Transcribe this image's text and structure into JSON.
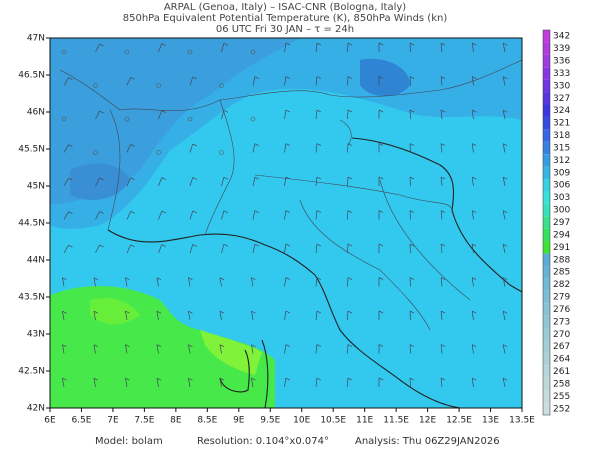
{
  "header": {
    "line1": "ARPAL (Genoa, Italy)  –  ISAC-CNR (Bologna, Italy)",
    "line2": "850hPa Equivalent Potential Temperature (K), 850hPa Winds (kn)",
    "line3": "06 UTC Fri 30 JAN  –  τ = 24h"
  },
  "map": {
    "lon_labels": [
      "6E",
      "6.5E",
      "7E",
      "7.5E",
      "8E",
      "8.5E",
      "9E",
      "9.5E",
      "10E",
      "10.5E",
      "11E",
      "11.5E",
      "12E",
      "12.5E",
      "13E",
      "13.5E"
    ],
    "lat_labels": [
      "47N",
      "46.5N",
      "46N",
      "45.5N",
      "45N",
      "44.5N",
      "44N",
      "43.5N",
      "43N",
      "42.5N",
      "42N"
    ]
  },
  "colorbar": {
    "levels": [
      342,
      339,
      336,
      333,
      330,
      327,
      324,
      321,
      318,
      315,
      312,
      309,
      306,
      303,
      300,
      297,
      294,
      291,
      288,
      285,
      282,
      279,
      276,
      273,
      270,
      267,
      264,
      261,
      258,
      255,
      252
    ]
  },
  "footer": {
    "model": "Model: bolam",
    "resolution": "Resolution: 0.104°x0.074°",
    "analysis": "Analysis: Thu 06Z29JAN2026"
  }
}
